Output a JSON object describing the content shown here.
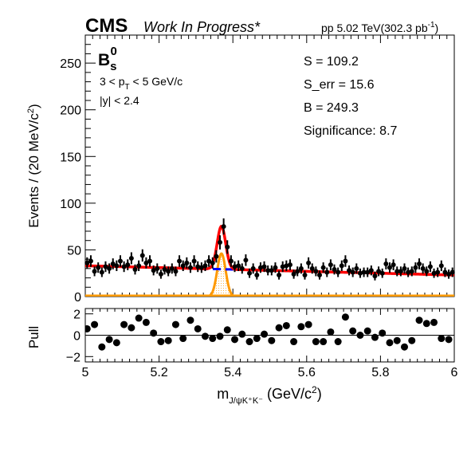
{
  "header": {
    "experiment": "CMS",
    "status": "Work In Progress*",
    "lumi_prefix": "pp 5.02 TeV(302.3 pb",
    "lumi_exp": "-1",
    "lumi_suffix": ")"
  },
  "labels": {
    "particle": "B",
    "particle_sub": "s",
    "particle_sup": "0",
    "cut_pt_a": "3 < p",
    "cut_pt_sub": "T",
    "cut_pt_b": " < 5 GeV/c",
    "cut_y": "|y| < 2.4"
  },
  "stats": {
    "s": "S = 109.2",
    "s_err": "S_err = 15.6",
    "b": "B = 249.3",
    "significance": "Significance: 8.7"
  },
  "axes": {
    "ylabel": "Events / (20 MeV/c",
    "ylabel_sup": "2",
    "ylabel_end": ")",
    "xlabel_m": "m",
    "xlabel_sub": "J/ψK⁺K⁻",
    "xlabel_unit": " (GeV/c",
    "xlabel_sup": "2",
    "xlabel_end": ")",
    "pull_label": "Pull"
  },
  "colors": {
    "data": "#000000",
    "total_fit": "#ff0000",
    "background": "#0000ff",
    "signal": "#ff9900"
  },
  "chart_data": [
    {
      "type": "scatter",
      "panel": "main",
      "xlim": [
        5.0,
        6.0
      ],
      "ylim": [
        0,
        280
      ],
      "xticks": [
        5.0,
        5.2,
        5.4,
        5.6,
        5.8,
        6.0
      ],
      "xtick_labels": [
        "5",
        "5.2",
        "5.4",
        "5.6",
        "5.8",
        "6"
      ],
      "yticks": [
        0,
        50,
        100,
        150,
        200,
        250
      ],
      "ytick_labels": [
        "0",
        "50",
        "100",
        "150",
        "200",
        "250"
      ],
      "series": [
        {
          "kind": "data-points",
          "x": [
            5.005,
            5.015,
            5.025,
            5.035,
            5.045,
            5.055,
            5.065,
            5.075,
            5.085,
            5.095,
            5.105,
            5.115,
            5.125,
            5.135,
            5.145,
            5.155,
            5.165,
            5.175,
            5.185,
            5.195,
            5.205,
            5.215,
            5.225,
            5.235,
            5.245,
            5.255,
            5.265,
            5.275,
            5.285,
            5.295,
            5.305,
            5.315,
            5.325,
            5.335,
            5.345,
            5.355,
            5.365,
            5.375,
            5.385,
            5.395,
            5.405,
            5.415,
            5.425,
            5.435,
            5.445,
            5.455,
            5.465,
            5.475,
            5.485,
            5.495,
            5.505,
            5.515,
            5.525,
            5.535,
            5.545,
            5.555,
            5.565,
            5.575,
            5.585,
            5.595,
            5.605,
            5.615,
            5.625,
            5.635,
            5.645,
            5.655,
            5.665,
            5.675,
            5.685,
            5.695,
            5.705,
            5.715,
            5.725,
            5.735,
            5.745,
            5.755,
            5.765,
            5.775,
            5.785,
            5.795,
            5.805,
            5.815,
            5.825,
            5.835,
            5.845,
            5.855,
            5.865,
            5.875,
            5.885,
            5.895,
            5.905,
            5.915,
            5.925,
            5.935,
            5.945,
            5.955,
            5.965,
            5.975,
            5.985,
            5.995
          ],
          "y": [
            36,
            38,
            27,
            31,
            26,
            32,
            30,
            35,
            33,
            38,
            32,
            34,
            41,
            29,
            33,
            44,
            36,
            38,
            28,
            30,
            24,
            29,
            27,
            30,
            27,
            38,
            33,
            36,
            31,
            38,
            32,
            31,
            33,
            38,
            36,
            43,
            58,
            75,
            53,
            38,
            32,
            33,
            30,
            39,
            25,
            30,
            23,
            31,
            32,
            28,
            28,
            31,
            23,
            32,
            33,
            34,
            24,
            27,
            30,
            23,
            36,
            30,
            27,
            23,
            31,
            26,
            34,
            29,
            26,
            33,
            38,
            28,
            26,
            30,
            25,
            26,
            26,
            28,
            22,
            27,
            25,
            35,
            31,
            34,
            27,
            27,
            30,
            26,
            27,
            31,
            35,
            30,
            27,
            32,
            25,
            26,
            33,
            26,
            24,
            26
          ],
          "errors": [
            6.0,
            6.2,
            5.2,
            5.6,
            5.1,
            5.7,
            5.5,
            5.9,
            5.7,
            6.2,
            5.7,
            5.8,
            6.4,
            5.4,
            5.7,
            6.6,
            6.0,
            6.2,
            5.3,
            5.5,
            4.9,
            5.4,
            5.2,
            5.5,
            5.2,
            6.2,
            5.7,
            6.0,
            5.6,
            6.2,
            5.7,
            5.6,
            5.7,
            6.2,
            6.0,
            6.6,
            7.6,
            8.7,
            7.3,
            6.2,
            5.7,
            5.7,
            5.5,
            6.2,
            5.0,
            5.5,
            4.8,
            5.6,
            5.7,
            5.3,
            5.3,
            5.6,
            4.8,
            5.7,
            5.7,
            5.8,
            4.9,
            5.2,
            5.5,
            4.8,
            6.0,
            5.5,
            5.2,
            4.8,
            5.6,
            5.1,
            5.8,
            5.4,
            5.1,
            5.7,
            6.2,
            5.3,
            5.1,
            5.5,
            5.0,
            5.1,
            5.1,
            5.3,
            4.7,
            5.2,
            5.0,
            5.9,
            5.6,
            5.8,
            5.2,
            5.2,
            5.5,
            5.1,
            5.2,
            5.6,
            5.9,
            5.5,
            5.2,
            5.7,
            5.0,
            5.1,
            5.7,
            5.1,
            4.9,
            5.1
          ]
        },
        {
          "kind": "total-fit",
          "color": "#ff0000",
          "bkg_start": 33.0,
          "bkg_end": 23.0,
          "peak_mean": 5.369,
          "peak_sigma": 0.0115,
          "peak_height": 46
        },
        {
          "kind": "background-fit",
          "color": "#0000ff"
        },
        {
          "kind": "signal-fit",
          "color": "#ff9900",
          "fill": "hatched"
        }
      ]
    },
    {
      "type": "scatter",
      "panel": "pull",
      "xlim": [
        5.0,
        6.0
      ],
      "ylim": [
        -2.5,
        2.5
      ],
      "yticks": [
        -2,
        0,
        2
      ],
      "ytick_labels": [
        "−2",
        "0",
        "2"
      ],
      "x": [
        5.005,
        5.025,
        5.045,
        5.065,
        5.085,
        5.105,
        5.125,
        5.145,
        5.165,
        5.185,
        5.205,
        5.225,
        5.245,
        5.265,
        5.285,
        5.305,
        5.325,
        5.345,
        5.365,
        5.385,
        5.405,
        5.425,
        5.445,
        5.465,
        5.485,
        5.505,
        5.525,
        5.545,
        5.565,
        5.585,
        5.605,
        5.625,
        5.645,
        5.665,
        5.685,
        5.705,
        5.725,
        5.745,
        5.765,
        5.785,
        5.805,
        5.825,
        5.845,
        5.865,
        5.885,
        5.905,
        5.925,
        5.945,
        5.965,
        5.985
      ],
      "y": [
        0.6,
        1.0,
        -1.1,
        -0.4,
        -0.7,
        1.0,
        0.7,
        1.6,
        1.2,
        0.2,
        -0.6,
        -0.5,
        1.0,
        -0.3,
        1.4,
        0.6,
        -0.1,
        -0.3,
        -0.1,
        0.5,
        -0.4,
        0.1,
        -0.6,
        -0.3,
        0.1,
        -0.5,
        0.7,
        0.9,
        -0.6,
        0.8,
        1.0,
        -0.6,
        -0.6,
        0.3,
        -0.6,
        1.7,
        0.4,
        0.0,
        0.4,
        -0.2,
        0.2,
        -0.7,
        -0.5,
        -1.1,
        -0.5,
        1.4,
        1.1,
        1.2,
        -0.3,
        -0.4
      ]
    }
  ]
}
